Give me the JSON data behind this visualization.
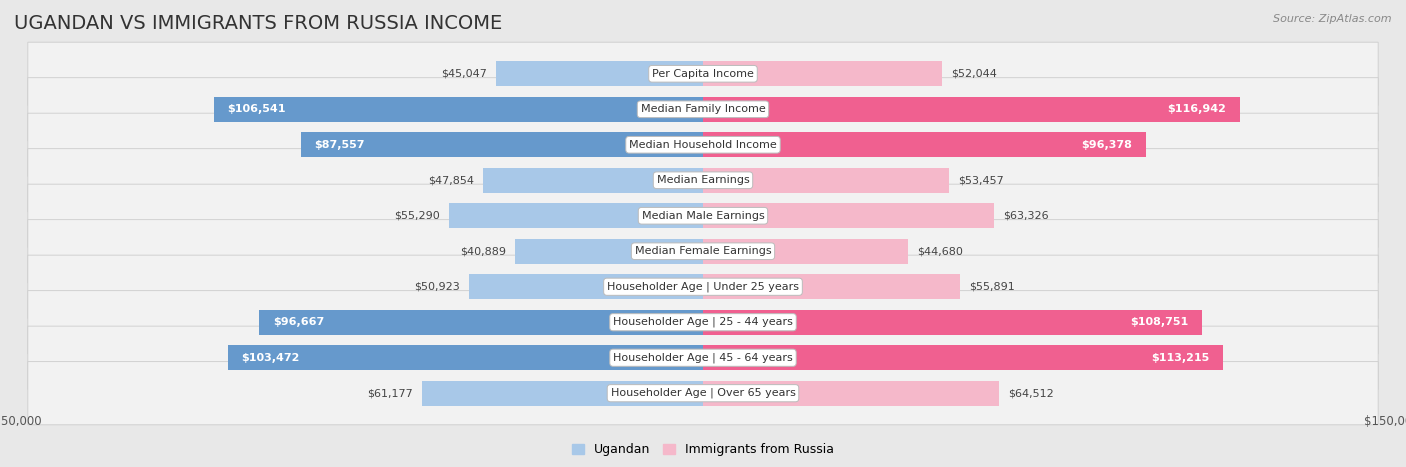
{
  "title": "UGANDAN VS IMMIGRANTS FROM RUSSIA INCOME",
  "source": "Source: ZipAtlas.com",
  "categories": [
    "Per Capita Income",
    "Median Family Income",
    "Median Household Income",
    "Median Earnings",
    "Median Male Earnings",
    "Median Female Earnings",
    "Householder Age | Under 25 years",
    "Householder Age | 25 - 44 years",
    "Householder Age | 45 - 64 years",
    "Householder Age | Over 65 years"
  ],
  "ugandan_values": [
    45047,
    106541,
    87557,
    47854,
    55290,
    40889,
    50923,
    96667,
    103472,
    61177
  ],
  "russia_values": [
    52044,
    116942,
    96378,
    53457,
    63326,
    44680,
    55891,
    108751,
    113215,
    64512
  ],
  "ugandan_labels": [
    "$45,047",
    "$106,541",
    "$87,557",
    "$47,854",
    "$55,290",
    "$40,889",
    "$50,923",
    "$96,667",
    "$103,472",
    "$61,177"
  ],
  "russia_labels": [
    "$52,044",
    "$116,942",
    "$96,378",
    "$53,457",
    "$63,326",
    "$44,680",
    "$55,891",
    "$108,751",
    "$113,215",
    "$64,512"
  ],
  "ugandan_color_light": "#a8c8e8",
  "ugandan_color_dark": "#6699cc",
  "russia_color_light": "#f5b8ca",
  "russia_color_dark": "#f06090",
  "max_value": 150000,
  "ugandan_white_threshold": 75000,
  "russia_white_threshold": 75000,
  "background_color": "#e8e8e8",
  "row_bg_color": "#f2f2f2",
  "title_fontsize": 14,
  "source_fontsize": 8,
  "label_fontsize": 8,
  "category_fontsize": 8
}
